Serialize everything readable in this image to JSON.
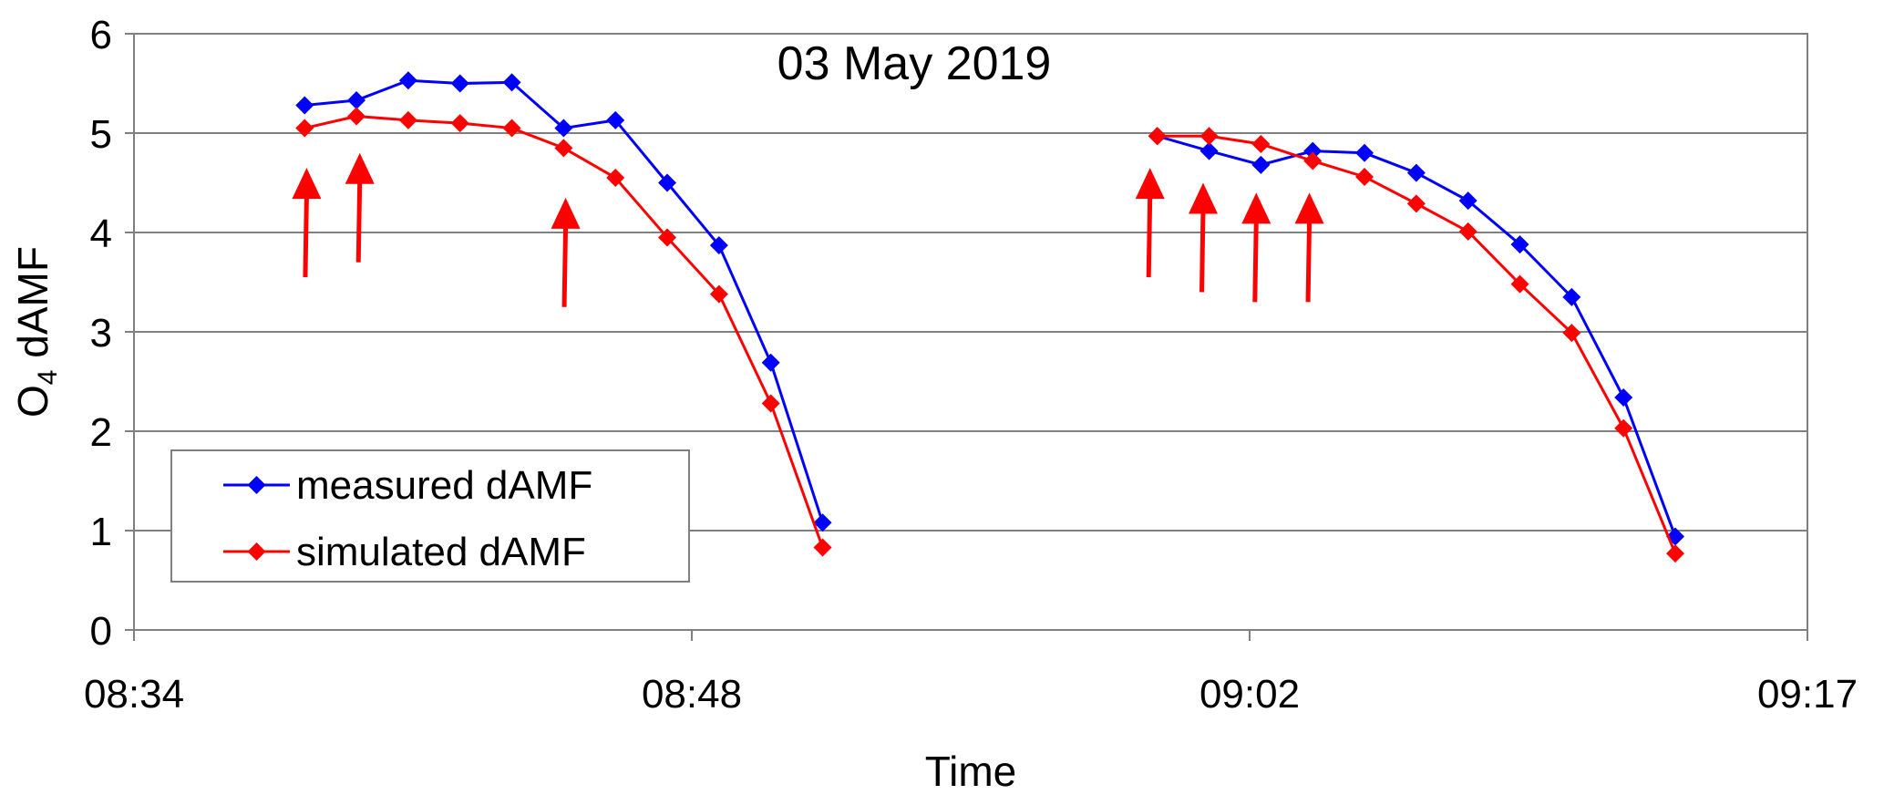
{
  "chart_data": {
    "type": "line",
    "title": "03 May 2019",
    "xlabel": "Time",
    "ylabel_main": "O",
    "ylabel_sub": "4",
    "ylabel_rest": " dAMF",
    "ylim": [
      0,
      6
    ],
    "y_ticks": [
      0,
      1,
      2,
      3,
      4,
      5,
      6
    ],
    "y_tick_labels": [
      "0",
      "1",
      "2",
      "3",
      "4",
      "5",
      "6"
    ],
    "x_ticks": [
      "08:34",
      "08:48",
      "09:02",
      "09:17"
    ],
    "x_tick_minutes": [
      514,
      528,
      542,
      556
    ],
    "xlim_minutes": [
      514,
      556
    ],
    "grid": "horizontal",
    "legend_position": "bottom-left",
    "series": [
      {
        "name": "measured dAMF",
        "color": "#0000ff",
        "marker": "diamond",
        "segments": [
          [
            [
              "08:38:17",
              5.28
            ],
            [
              "08:39:35",
              5.33
            ],
            [
              "08:40:53",
              5.53
            ],
            [
              "08:42:11",
              5.5
            ],
            [
              "08:43:29",
              5.51
            ],
            [
              "08:44:47",
              5.05
            ],
            [
              "08:46:05",
              5.13
            ],
            [
              "08:47:23",
              4.5
            ],
            [
              "08:48:41",
              3.87
            ],
            [
              "08:49:59",
              2.69
            ],
            [
              "08:51:17",
              1.08
            ]
          ],
          [
            [
              "08:59:41",
              4.97
            ],
            [
              "09:00:59",
              4.82
            ],
            [
              "09:02:17",
              4.68
            ],
            [
              "09:03:35",
              4.82
            ],
            [
              "09:04:53",
              4.8
            ],
            [
              "09:06:11",
              4.6
            ],
            [
              "09:07:29",
              4.32
            ],
            [
              "09:08:47",
              3.88
            ],
            [
              "09:10:05",
              3.35
            ],
            [
              "09:11:23",
              2.34
            ],
            [
              "09:12:41",
              0.94
            ]
          ]
        ]
      },
      {
        "name": "simulated dAMF",
        "color": "#ff0000",
        "marker": "diamond",
        "segments": [
          [
            [
              "08:38:17",
              5.05
            ],
            [
              "08:39:35",
              5.17
            ],
            [
              "08:40:53",
              5.13
            ],
            [
              "08:42:11",
              5.1
            ],
            [
              "08:43:29",
              5.05
            ],
            [
              "08:44:47",
              4.85
            ],
            [
              "08:46:05",
              4.55
            ],
            [
              "08:47:23",
              3.95
            ],
            [
              "08:48:41",
              3.38
            ],
            [
              "08:49:59",
              2.28
            ],
            [
              "08:51:17",
              0.83
            ]
          ],
          [
            [
              "08:59:41",
              4.97
            ],
            [
              "09:00:59",
              4.97
            ],
            [
              "09:02:17",
              4.89
            ],
            [
              "09:03:35",
              4.72
            ],
            [
              "09:04:53",
              4.56
            ],
            [
              "09:06:11",
              4.29
            ],
            [
              "09:07:29",
              4.01
            ],
            [
              "09:08:47",
              3.48
            ],
            [
              "09:10:05",
              2.99
            ],
            [
              "09:11:23",
              2.03
            ],
            [
              "09:12:41",
              0.77
            ]
          ]
        ]
      }
    ],
    "annotations": {
      "arrow_color": "#ff0000",
      "arrows": [
        {
          "x": "08:38:20",
          "y_tail": 3.55,
          "y_head": 4.65
        },
        {
          "x": "08:39:40",
          "y_tail": 3.7,
          "y_head": 4.8
        },
        {
          "x": "08:44:50",
          "y_tail": 3.25,
          "y_head": 4.35
        },
        {
          "x": "08:59:30",
          "y_tail": 3.55,
          "y_head": 4.65
        },
        {
          "x": "09:00:50",
          "y_tail": 3.4,
          "y_head": 4.5
        },
        {
          "x": "09:02:10",
          "y_tail": 3.3,
          "y_head": 4.4
        },
        {
          "x": "09:03:30",
          "y_tail": 3.3,
          "y_head": 4.4
        }
      ]
    }
  }
}
